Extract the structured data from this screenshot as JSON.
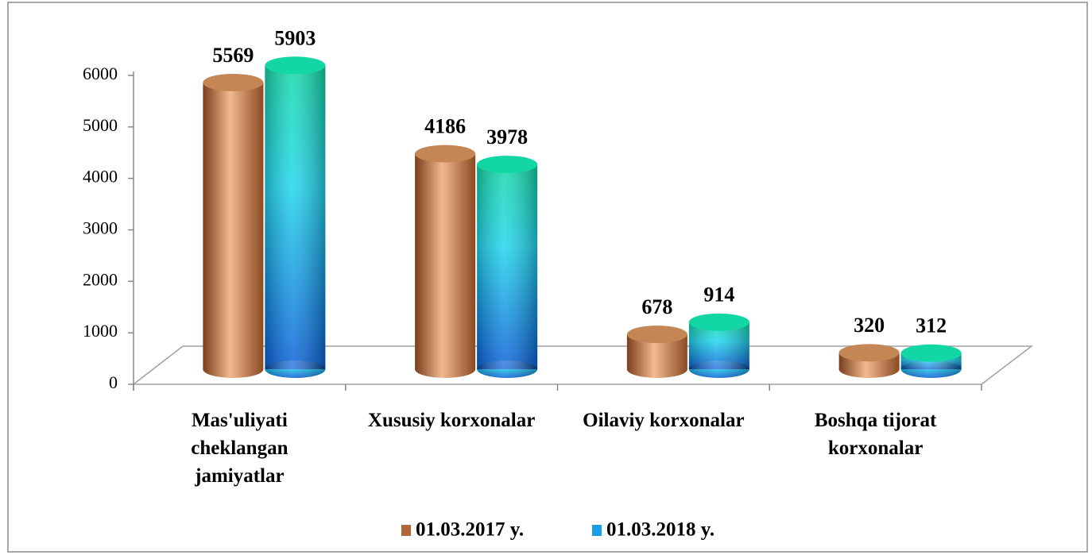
{
  "chart_data": {
    "type": "bar3d",
    "categories": [
      "Mas'uliyati\ncheklangan\njamiyatlar",
      "Xususiy korxonalar",
      "Oilaviy korxonalar",
      "Boshqa tijorat\nkorxonalar"
    ],
    "series": [
      {
        "name": "01.03.2017 y.",
        "color": "#b0683a",
        "values": [
          5569,
          4186,
          678,
          320
        ]
      },
      {
        "name": "01.03.2018 y.",
        "color": "#1a9ee8",
        "values": [
          5903,
          3978,
          914,
          312
        ]
      }
    ],
    "ylim": [
      0,
      6000
    ],
    "yticks": [
      0,
      1000,
      2000,
      3000,
      4000,
      5000,
      6000
    ]
  }
}
